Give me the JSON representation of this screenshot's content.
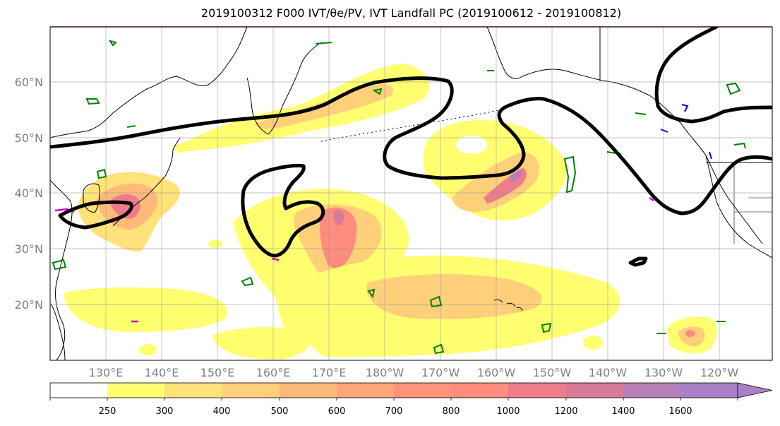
{
  "title": "2019100312 F000 IVT/θe/PV, IVT Landfall PC (2019100612 - 2019100812)",
  "map": {
    "lat_ticks": [
      "60°N",
      "50°N",
      "40°N",
      "30°N",
      "20°N"
    ],
    "lon_ticks": [
      "130°E",
      "140°E",
      "150°E",
      "160°E",
      "170°E",
      "180°W",
      "170°W",
      "160°W",
      "150°W",
      "140°W",
      "130°W",
      "120°W"
    ],
    "colors": {
      "ivt_250": "#ffff70",
      "ivt_300": "#ffe27a",
      "ivt_400": "#ffcf7a",
      "ivt_500": "#ffba7a",
      "ivt_600": "#ffa67a",
      "ivt_700": "#ff9478",
      "ivt_800": "#ff8c7c",
      "ivt_1000": "#ee7c8a",
      "ivt_1200": "#d97b98",
      "ivt_1400": "#b77fb7",
      "ivt_1600": "#a880c8",
      "pc_contour": "#000000",
      "theta_contour": "#008000",
      "pv_contour": "#0000ff",
      "magenta_contour": "#cc00cc"
    }
  },
  "colorbar": {
    "levels": [
      "250",
      "300",
      "400",
      "500",
      "600",
      "700",
      "800",
      "1000",
      "1200",
      "1400",
      "1600"
    ]
  }
}
